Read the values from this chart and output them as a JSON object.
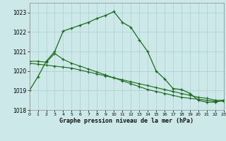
{
  "xlabel": "Graphe pression niveau de la mer (hPa)",
  "background_color": "#cde8e8",
  "grid_color": "#aacfcf",
  "line_color": "#1a6b1a",
  "x_values": [
    0,
    1,
    2,
    3,
    4,
    5,
    6,
    7,
    8,
    9,
    10,
    11,
    12,
    13,
    14,
    15,
    16,
    17,
    18,
    19,
    20,
    21,
    22,
    23
  ],
  "series1": [
    1019.0,
    1019.7,
    1020.5,
    1021.0,
    1022.05,
    1022.2,
    1022.35,
    1022.5,
    1022.7,
    1022.85,
    1023.05,
    1022.5,
    1022.25,
    1021.6,
    1021.0,
    1020.0,
    1019.6,
    1019.1,
    1019.05,
    1018.85,
    1018.5,
    1018.4,
    1018.4,
    1018.5
  ],
  "series2": [
    1020.5,
    1020.5,
    1020.45,
    1020.9,
    1020.6,
    1020.4,
    1020.25,
    1020.1,
    1019.95,
    1019.8,
    1019.65,
    1019.5,
    1019.35,
    1019.2,
    1019.05,
    1018.95,
    1018.85,
    1018.75,
    1018.65,
    1018.6,
    1018.55,
    1018.5,
    1018.45,
    1018.45
  ],
  "series3": [
    1020.4,
    1020.35,
    1020.3,
    1020.25,
    1020.2,
    1020.15,
    1020.05,
    1019.95,
    1019.85,
    1019.75,
    1019.65,
    1019.55,
    1019.45,
    1019.35,
    1019.25,
    1019.15,
    1019.05,
    1018.95,
    1018.85,
    1018.75,
    1018.65,
    1018.6,
    1018.5,
    1018.5
  ],
  "ylim": [
    1018.0,
    1023.5
  ],
  "yticks": [
    1018,
    1019,
    1020,
    1021,
    1022,
    1023
  ],
  "xlim": [
    0,
    23
  ],
  "xticks": [
    0,
    1,
    2,
    3,
    4,
    5,
    6,
    7,
    8,
    9,
    10,
    11,
    12,
    13,
    14,
    15,
    16,
    17,
    18,
    19,
    20,
    21,
    22,
    23
  ]
}
